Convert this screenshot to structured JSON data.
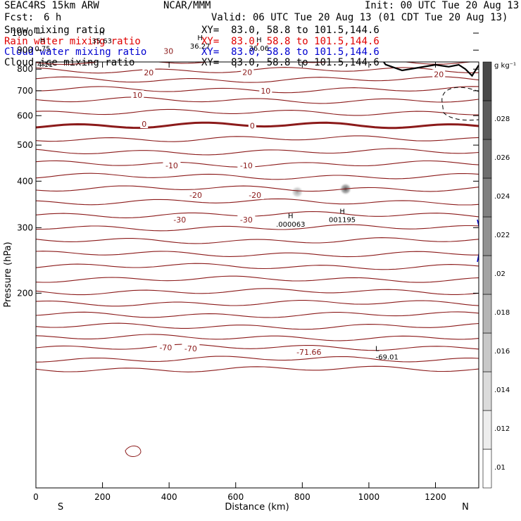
{
  "header": {
    "model": "SEAC4RS 15km ARW",
    "org": "NCAR/MMM",
    "init": "Init: 00 UTC Tue 20 Aug 13",
    "fcst_label": "Fcst:",
    "fcst_value": "6 h",
    "valid": "Valid: 06 UTC Tue 20 Aug 13 (01 CDT Tue 20 Aug 13)"
  },
  "fields": [
    {
      "name": "Snow mixing ratio",
      "xy": "XY=  83.0, 58.8 to 101.5,144.6",
      "color": "#000000"
    },
    {
      "name": "Rain water mixing ratio",
      "xy": "XY=  83.0, 58.8 to 101.5,144.6",
      "color": "#e00000"
    },
    {
      "name": "Cloud water mixing ratio",
      "xy": "XY=  83.0, 58.8 to 101.5,144.6",
      "color": "#0000d0"
    },
    {
      "name": "Cloud ice mixing ratio",
      "xy": "XY=  83.0, 58.8 to 101.5,144.6",
      "color": "#000000"
    }
  ],
  "colors": {
    "isotherm": "#8b1a1a",
    "terrain": "#000000",
    "cloud_water": "#0000d0"
  },
  "chart_data": {
    "type": "contour",
    "xlabel": "Distance (km)",
    "ylabel": "Pressure (hPa)",
    "xlim": [
      0,
      1330
    ],
    "ylim": [
      1050,
      120
    ],
    "y_scale": "log",
    "x_ticks": [
      0,
      200,
      400,
      600,
      800,
      1000,
      1200
    ],
    "y_ticks": [
      200,
      300,
      400,
      500,
      600,
      700,
      800,
      900,
      1000
    ],
    "x_tick_labels": [
      "0",
      "200",
      "400",
      "600",
      "800",
      "1000",
      "1200"
    ],
    "y_tick_labels": [
      "200",
      "300",
      "400",
      "500",
      "600",
      "700",
      "800",
      "900",
      "1000"
    ],
    "endpoints": {
      "left": "S",
      "right": "N"
    },
    "isotherm_labels": [
      {
        "text": "-70",
        "x": 390,
        "p": 143
      },
      {
        "text": "-70",
        "x": 465,
        "p": 142
      },
      {
        "text": "-71.66",
        "x": 820,
        "p": 139
      },
      {
        "text": "-30",
        "x": 432,
        "p": 315
      },
      {
        "text": "-30",
        "x": 632,
        "p": 315
      },
      {
        "text": "-20",
        "x": 480,
        "p": 367
      },
      {
        "text": "-20",
        "x": 658,
        "p": 367
      },
      {
        "text": "-10",
        "x": 408,
        "p": 441
      },
      {
        "text": "-10",
        "x": 632,
        "p": 441
      },
      {
        "text": "0",
        "x": 325,
        "p": 570
      },
      {
        "text": "0",
        "x": 650,
        "p": 564
      },
      {
        "text": "10",
        "x": 305,
        "p": 681
      },
      {
        "text": "10",
        "x": 690,
        "p": 699
      },
      {
        "text": "20",
        "x": 339,
        "p": 783
      },
      {
        "text": "20",
        "x": 635,
        "p": 786
      },
      {
        "text": "20",
        "x": 1210,
        "p": 775
      },
      {
        "text": "30",
        "x": 398,
        "p": 895
      }
    ],
    "markers": [
      {
        "type": "H",
        "value": ".000063",
        "x": 765,
        "p": 318
      },
      {
        "type": "H",
        "value": "001195",
        "x": 920,
        "p": 327
      },
      {
        "type": "L",
        "value": "-69.01",
        "x": 1025,
        "p": 140
      },
      {
        "type": "H",
        "value": "0.75",
        "x": 20,
        "p": 942
      },
      {
        "type": "H",
        "value": "35.63",
        "x": 198,
        "p": 990
      },
      {
        "type": "H",
        "value": "36.27",
        "x": 493,
        "p": 957
      },
      {
        "type": "H",
        "value": "36.06",
        "x": 670,
        "p": 945
      }
    ],
    "corner_label": "4.11",
    "terrain_pressure": [
      {
        "x": 0,
        "p": 1012
      },
      {
        "x": 40,
        "p": 1012
      },
      {
        "x": 80,
        "p": 1000
      },
      {
        "x": 120,
        "p": 970
      },
      {
        "x": 150,
        "p": 930
      },
      {
        "x": 175,
        "p": 960
      },
      {
        "x": 200,
        "p": 1003
      },
      {
        "x": 250,
        "p": 1009
      },
      {
        "x": 300,
        "p": 1009
      },
      {
        "x": 400,
        "p": 1007
      },
      {
        "x": 450,
        "p": 996
      },
      {
        "x": 480,
        "p": 962
      },
      {
        "x": 510,
        "p": 947
      },
      {
        "x": 545,
        "p": 980
      },
      {
        "x": 570,
        "p": 950
      },
      {
        "x": 600,
        "p": 926
      },
      {
        "x": 620,
        "p": 955
      },
      {
        "x": 650,
        "p": 962
      },
      {
        "x": 690,
        "p": 940
      },
      {
        "x": 720,
        "p": 924
      },
      {
        "x": 760,
        "p": 888
      },
      {
        "x": 800,
        "p": 890
      },
      {
        "x": 830,
        "p": 880
      },
      {
        "x": 870,
        "p": 908
      },
      {
        "x": 880,
        "p": 883
      },
      {
        "x": 890,
        "p": 880
      },
      {
        "x": 915,
        "p": 925
      },
      {
        "x": 940,
        "p": 911
      },
      {
        "x": 960,
        "p": 887
      },
      {
        "x": 980,
        "p": 911
      },
      {
        "x": 1000,
        "p": 936
      },
      {
        "x": 1025,
        "p": 888
      },
      {
        "x": 1050,
        "p": 823
      },
      {
        "x": 1100,
        "p": 794
      },
      {
        "x": 1150,
        "p": 808
      },
      {
        "x": 1200,
        "p": 822
      },
      {
        "x": 1240,
        "p": 812
      },
      {
        "x": 1270,
        "p": 822
      },
      {
        "x": 1290,
        "p": 800
      },
      {
        "x": 1310,
        "p": 768
      },
      {
        "x": 1330,
        "p": 820
      }
    ],
    "hydrometeor_cells": [
      {
        "x": 785,
        "p_top": 350,
        "p_bottom": 400,
        "intensity": 0.45
      },
      {
        "x": 930,
        "p_top": 350,
        "p_bottom": 415,
        "intensity": 0.85
      }
    ],
    "colorbar": {
      "units": "g kg⁻¹",
      "labels": [
        ".01",
        ".012",
        ".014",
        ".016",
        ".018",
        ".02",
        ".022",
        ".024",
        ".026",
        ".028"
      ]
    }
  }
}
